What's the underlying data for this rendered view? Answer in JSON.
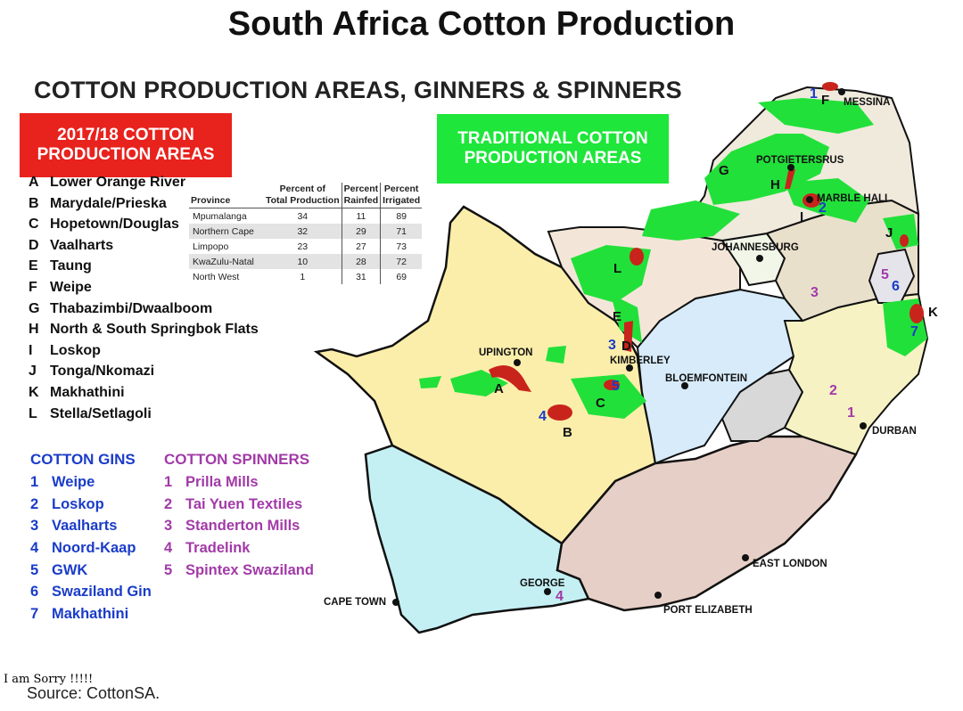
{
  "title": "South Africa Cotton Production",
  "subtitle": "COTTON PRODUCTION AREAS, GINNERS & SPINNERS",
  "legend": {
    "current_box": "2017/18 COTTON PRODUCTION AREAS",
    "traditional_box": "TRADITIONAL COTTON PRODUCTION AREAS",
    "current_color": "#e8221d",
    "traditional_color": "#1ee63a"
  },
  "production_areas": [
    {
      "key": "A",
      "name": "Lower Orange River"
    },
    {
      "key": "B",
      "name": "Marydale/Prieska"
    },
    {
      "key": "C",
      "name": "Hopetown/Douglas"
    },
    {
      "key": "D",
      "name": "Vaalharts"
    },
    {
      "key": "E",
      "name": "Taung"
    },
    {
      "key": "F",
      "name": "Weipe"
    },
    {
      "key": "G",
      "name": "Thabazimbi/Dwaalboom"
    },
    {
      "key": "H",
      "name": "North & South Springbok Flats"
    },
    {
      "key": "I",
      "name": "Loskop"
    },
    {
      "key": "J",
      "name": "Tonga/Nkomazi"
    },
    {
      "key": "K",
      "name": "Makhathini"
    },
    {
      "key": "L",
      "name": "Stella/Setlagoli"
    }
  ],
  "gins": {
    "title": "COTTON GINS",
    "color": "#1a3cc8",
    "items": [
      {
        "num": "1",
        "name": "Weipe"
      },
      {
        "num": "2",
        "name": "Loskop"
      },
      {
        "num": "3",
        "name": "Vaalharts"
      },
      {
        "num": "4",
        "name": "Noord-Kaap"
      },
      {
        "num": "5",
        "name": "GWK"
      },
      {
        "num": "6",
        "name": "Swaziland Gin"
      },
      {
        "num": "7",
        "name": "Makhathini"
      }
    ]
  },
  "spinners": {
    "title": "COTTON SPINNERS",
    "color": "#a23aa8",
    "items": [
      {
        "num": "1",
        "name": "Prilla Mills"
      },
      {
        "num": "2",
        "name": "Tai Yuen Textiles"
      },
      {
        "num": "3",
        "name": "Standerton Mills"
      },
      {
        "num": "4",
        "name": "Tradelink"
      },
      {
        "num": "5",
        "name": "Spintex Swaziland"
      }
    ]
  },
  "table": {
    "headers": {
      "province": "Province",
      "share_1": "Percent of",
      "share_2": "Total Production",
      "rainfed_1": "Percent",
      "rainfed_2": "Rainfed",
      "irrigated_1": "Percent",
      "irrigated_2": "Irrigated"
    },
    "rows": [
      {
        "province": "Mpumalanga",
        "share": 34,
        "rainfed": 11,
        "irrigated": 89
      },
      {
        "province": "Northern Cape",
        "share": 32,
        "rainfed": 29,
        "irrigated": 71
      },
      {
        "province": "Limpopo",
        "share": 23,
        "rainfed": 27,
        "irrigated": 73
      },
      {
        "province": "KwaZulu-Natal",
        "share": 10,
        "rainfed": 28,
        "irrigated": 72
      },
      {
        "province": "North West",
        "share": 1,
        "rainfed": 31,
        "irrigated": 69
      }
    ]
  },
  "map": {
    "cities": {
      "messina": "MESSINA",
      "potgietersrus": "POTGIETERSRUS",
      "marble_hall": "MARBLE HALL",
      "johannesburg": "JOHANNESBURG",
      "upington": "UPINGTON",
      "kimberley": "KIMBERLEY",
      "bloemfontein": "BLOEMFONTEIN",
      "durban": "DURBAN",
      "east_london": "EAST LONDON",
      "port_elizabeth": "PORT ELIZABETH",
      "george": "GEORGE",
      "cape_town": "CAPE TOWN"
    },
    "area_markers": [
      "A",
      "B",
      "C",
      "D",
      "E",
      "F",
      "G",
      "H",
      "I",
      "J",
      "K",
      "L"
    ],
    "gin_markers": [
      "1",
      "2",
      "3",
      "4",
      "5",
      "6",
      "7"
    ],
    "spinner_markers": [
      "1",
      "2",
      "3",
      "4",
      "5"
    ]
  },
  "footer": {
    "note": "I am Sorry !!!!!",
    "source": "Source: CottonSA."
  }
}
